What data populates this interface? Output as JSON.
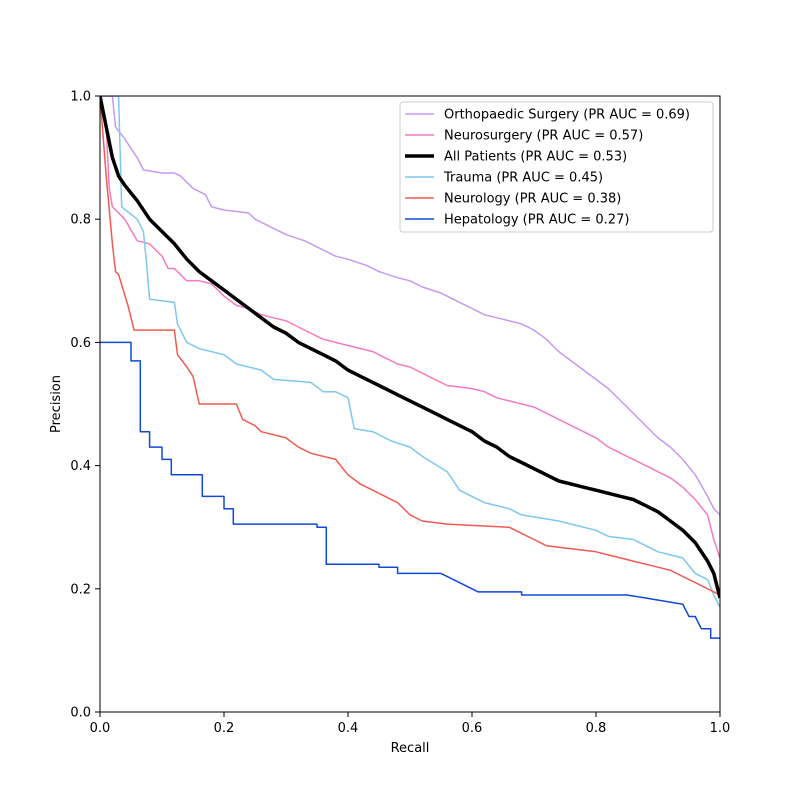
{
  "chart_data": {
    "type": "line",
    "title": "",
    "xlabel": "Recall",
    "ylabel": "Precision",
    "xlim": [
      0.0,
      1.0
    ],
    "ylim": [
      0.0,
      1.0
    ],
    "xticks": [
      "0.0",
      "0.2",
      "0.4",
      "0.6",
      "0.8",
      "1.0"
    ],
    "yticks": [
      "0.0",
      "0.2",
      "0.4",
      "0.6",
      "0.8",
      "1.0"
    ],
    "grid": false,
    "legend_position": "top-right",
    "series": [
      {
        "name": "Orthopaedic Surgery (PR AUC = 0.69)",
        "color": "#c39bf0",
        "linewidth": 1.5,
        "points": [
          [
            0.0,
            1.0
          ],
          [
            0.02,
            1.0
          ],
          [
            0.025,
            0.95
          ],
          [
            0.04,
            0.93
          ],
          [
            0.06,
            0.9
          ],
          [
            0.07,
            0.88
          ],
          [
            0.1,
            0.875
          ],
          [
            0.12,
            0.875
          ],
          [
            0.13,
            0.87
          ],
          [
            0.15,
            0.85
          ],
          [
            0.17,
            0.84
          ],
          [
            0.18,
            0.82
          ],
          [
            0.2,
            0.815
          ],
          [
            0.24,
            0.81
          ],
          [
            0.25,
            0.8
          ],
          [
            0.28,
            0.785
          ],
          [
            0.3,
            0.775
          ],
          [
            0.33,
            0.765
          ],
          [
            0.36,
            0.75
          ],
          [
            0.38,
            0.74
          ],
          [
            0.4,
            0.735
          ],
          [
            0.43,
            0.725
          ],
          [
            0.45,
            0.715
          ],
          [
            0.48,
            0.705
          ],
          [
            0.5,
            0.7
          ],
          [
            0.52,
            0.69
          ],
          [
            0.55,
            0.68
          ],
          [
            0.58,
            0.665
          ],
          [
            0.6,
            0.655
          ],
          [
            0.62,
            0.645
          ],
          [
            0.66,
            0.635
          ],
          [
            0.68,
            0.63
          ],
          [
            0.7,
            0.62
          ],
          [
            0.72,
            0.605
          ],
          [
            0.74,
            0.585
          ],
          [
            0.76,
            0.57
          ],
          [
            0.78,
            0.555
          ],
          [
            0.8,
            0.54
          ],
          [
            0.82,
            0.525
          ],
          [
            0.84,
            0.505
          ],
          [
            0.86,
            0.485
          ],
          [
            0.88,
            0.465
          ],
          [
            0.9,
            0.445
          ],
          [
            0.92,
            0.43
          ],
          [
            0.94,
            0.41
          ],
          [
            0.96,
            0.385
          ],
          [
            0.98,
            0.35
          ],
          [
            0.99,
            0.33
          ],
          [
            1.0,
            0.32
          ]
        ]
      },
      {
        "name": "Neurosurgery (PR AUC = 0.57)",
        "color": "#f57bbf",
        "linewidth": 1.5,
        "points": [
          [
            0.0,
            1.0
          ],
          [
            0.01,
            0.95
          ],
          [
            0.015,
            0.85
          ],
          [
            0.02,
            0.82
          ],
          [
            0.04,
            0.8
          ],
          [
            0.06,
            0.765
          ],
          [
            0.08,
            0.76
          ],
          [
            0.1,
            0.74
          ],
          [
            0.11,
            0.72
          ],
          [
            0.12,
            0.72
          ],
          [
            0.14,
            0.7
          ],
          [
            0.16,
            0.7
          ],
          [
            0.18,
            0.695
          ],
          [
            0.2,
            0.675
          ],
          [
            0.22,
            0.66
          ],
          [
            0.24,
            0.655
          ],
          [
            0.26,
            0.645
          ],
          [
            0.28,
            0.64
          ],
          [
            0.3,
            0.635
          ],
          [
            0.32,
            0.625
          ],
          [
            0.34,
            0.615
          ],
          [
            0.36,
            0.605
          ],
          [
            0.38,
            0.6
          ],
          [
            0.4,
            0.595
          ],
          [
            0.44,
            0.585
          ],
          [
            0.46,
            0.575
          ],
          [
            0.48,
            0.565
          ],
          [
            0.5,
            0.56
          ],
          [
            0.52,
            0.55
          ],
          [
            0.54,
            0.54
          ],
          [
            0.56,
            0.53
          ],
          [
            0.6,
            0.525
          ],
          [
            0.62,
            0.52
          ],
          [
            0.64,
            0.51
          ],
          [
            0.66,
            0.505
          ],
          [
            0.68,
            0.5
          ],
          [
            0.7,
            0.495
          ],
          [
            0.72,
            0.485
          ],
          [
            0.74,
            0.475
          ],
          [
            0.76,
            0.465
          ],
          [
            0.78,
            0.455
          ],
          [
            0.8,
            0.445
          ],
          [
            0.82,
            0.43
          ],
          [
            0.84,
            0.42
          ],
          [
            0.86,
            0.41
          ],
          [
            0.88,
            0.4
          ],
          [
            0.9,
            0.39
          ],
          [
            0.92,
            0.38
          ],
          [
            0.94,
            0.365
          ],
          [
            0.96,
            0.345
          ],
          [
            0.98,
            0.32
          ],
          [
            0.99,
            0.28
          ],
          [
            1.0,
            0.25
          ]
        ]
      },
      {
        "name": "All Patients (PR AUC = 0.53)",
        "color": "#000000",
        "linewidth": 3.5,
        "points": [
          [
            0.0,
            1.0
          ],
          [
            0.01,
            0.95
          ],
          [
            0.02,
            0.9
          ],
          [
            0.03,
            0.87
          ],
          [
            0.04,
            0.855
          ],
          [
            0.06,
            0.83
          ],
          [
            0.08,
            0.8
          ],
          [
            0.1,
            0.78
          ],
          [
            0.12,
            0.76
          ],
          [
            0.14,
            0.735
          ],
          [
            0.16,
            0.715
          ],
          [
            0.18,
            0.7
          ],
          [
            0.2,
            0.685
          ],
          [
            0.22,
            0.67
          ],
          [
            0.24,
            0.655
          ],
          [
            0.26,
            0.64
          ],
          [
            0.28,
            0.625
          ],
          [
            0.3,
            0.615
          ],
          [
            0.32,
            0.6
          ],
          [
            0.34,
            0.59
          ],
          [
            0.36,
            0.58
          ],
          [
            0.38,
            0.57
          ],
          [
            0.4,
            0.555
          ],
          [
            0.42,
            0.545
          ],
          [
            0.44,
            0.535
          ],
          [
            0.46,
            0.525
          ],
          [
            0.48,
            0.515
          ],
          [
            0.5,
            0.505
          ],
          [
            0.52,
            0.495
          ],
          [
            0.54,
            0.485
          ],
          [
            0.56,
            0.475
          ],
          [
            0.58,
            0.465
          ],
          [
            0.6,
            0.455
          ],
          [
            0.62,
            0.44
          ],
          [
            0.64,
            0.43
          ],
          [
            0.66,
            0.415
          ],
          [
            0.68,
            0.405
          ],
          [
            0.7,
            0.395
          ],
          [
            0.72,
            0.385
          ],
          [
            0.74,
            0.375
          ],
          [
            0.76,
            0.37
          ],
          [
            0.78,
            0.365
          ],
          [
            0.8,
            0.36
          ],
          [
            0.82,
            0.355
          ],
          [
            0.84,
            0.35
          ],
          [
            0.86,
            0.345
          ],
          [
            0.88,
            0.335
          ],
          [
            0.9,
            0.325
          ],
          [
            0.92,
            0.31
          ],
          [
            0.94,
            0.295
          ],
          [
            0.96,
            0.275
          ],
          [
            0.98,
            0.245
          ],
          [
            0.99,
            0.225
          ],
          [
            1.0,
            0.185
          ]
        ]
      },
      {
        "name": "Trauma (PR AUC = 0.45)",
        "color": "#7ec8ee",
        "linewidth": 1.5,
        "points": [
          [
            0.0,
            1.0
          ],
          [
            0.03,
            1.0
          ],
          [
            0.035,
            0.82
          ],
          [
            0.06,
            0.8
          ],
          [
            0.07,
            0.78
          ],
          [
            0.075,
            0.73
          ],
          [
            0.08,
            0.67
          ],
          [
            0.12,
            0.665
          ],
          [
            0.125,
            0.63
          ],
          [
            0.14,
            0.6
          ],
          [
            0.16,
            0.59
          ],
          [
            0.2,
            0.58
          ],
          [
            0.22,
            0.565
          ],
          [
            0.26,
            0.555
          ],
          [
            0.28,
            0.54
          ],
          [
            0.34,
            0.535
          ],
          [
            0.36,
            0.52
          ],
          [
            0.38,
            0.52
          ],
          [
            0.4,
            0.51
          ],
          [
            0.41,
            0.46
          ],
          [
            0.44,
            0.455
          ],
          [
            0.47,
            0.44
          ],
          [
            0.5,
            0.43
          ],
          [
            0.52,
            0.415
          ],
          [
            0.56,
            0.39
          ],
          [
            0.58,
            0.36
          ],
          [
            0.6,
            0.35
          ],
          [
            0.62,
            0.34
          ],
          [
            0.66,
            0.33
          ],
          [
            0.68,
            0.32
          ],
          [
            0.74,
            0.31
          ],
          [
            0.76,
            0.305
          ],
          [
            0.8,
            0.295
          ],
          [
            0.82,
            0.285
          ],
          [
            0.86,
            0.28
          ],
          [
            0.9,
            0.26
          ],
          [
            0.92,
            0.255
          ],
          [
            0.94,
            0.25
          ],
          [
            0.96,
            0.225
          ],
          [
            0.98,
            0.215
          ],
          [
            0.99,
            0.19
          ],
          [
            1.0,
            0.17
          ]
        ]
      },
      {
        "name": "Neurology (PR AUC = 0.38)",
        "color": "#f05a52",
        "linewidth": 1.5,
        "points": [
          [
            0.0,
            1.0
          ],
          [
            0.01,
            0.87
          ],
          [
            0.02,
            0.76
          ],
          [
            0.025,
            0.715
          ],
          [
            0.03,
            0.71
          ],
          [
            0.045,
            0.66
          ],
          [
            0.055,
            0.62
          ],
          [
            0.12,
            0.62
          ],
          [
            0.125,
            0.58
          ],
          [
            0.14,
            0.56
          ],
          [
            0.15,
            0.545
          ],
          [
            0.16,
            0.5
          ],
          [
            0.22,
            0.5
          ],
          [
            0.23,
            0.475
          ],
          [
            0.25,
            0.465
          ],
          [
            0.26,
            0.455
          ],
          [
            0.3,
            0.445
          ],
          [
            0.32,
            0.43
          ],
          [
            0.34,
            0.42
          ],
          [
            0.38,
            0.41
          ],
          [
            0.4,
            0.385
          ],
          [
            0.42,
            0.37
          ],
          [
            0.44,
            0.36
          ],
          [
            0.46,
            0.35
          ],
          [
            0.48,
            0.34
          ],
          [
            0.5,
            0.32
          ],
          [
            0.52,
            0.31
          ],
          [
            0.56,
            0.305
          ],
          [
            0.66,
            0.3
          ],
          [
            0.68,
            0.29
          ],
          [
            0.7,
            0.28
          ],
          [
            0.72,
            0.27
          ],
          [
            0.76,
            0.265
          ],
          [
            0.8,
            0.26
          ],
          [
            0.84,
            0.25
          ],
          [
            0.86,
            0.245
          ],
          [
            0.88,
            0.24
          ],
          [
            0.9,
            0.235
          ],
          [
            0.92,
            0.23
          ],
          [
            0.94,
            0.22
          ],
          [
            0.96,
            0.21
          ],
          [
            0.98,
            0.2
          ],
          [
            1.0,
            0.19
          ]
        ]
      },
      {
        "name": "Hepatology (PR AUC = 0.27)",
        "color": "#1048d8",
        "linewidth": 1.5,
        "points": [
          [
            0.0,
            0.6
          ],
          [
            0.05,
            0.6
          ],
          [
            0.05,
            0.57
          ],
          [
            0.065,
            0.57
          ],
          [
            0.065,
            0.455
          ],
          [
            0.08,
            0.455
          ],
          [
            0.08,
            0.43
          ],
          [
            0.1,
            0.43
          ],
          [
            0.1,
            0.41
          ],
          [
            0.115,
            0.41
          ],
          [
            0.115,
            0.385
          ],
          [
            0.165,
            0.385
          ],
          [
            0.165,
            0.35
          ],
          [
            0.2,
            0.35
          ],
          [
            0.2,
            0.33
          ],
          [
            0.215,
            0.33
          ],
          [
            0.215,
            0.305
          ],
          [
            0.35,
            0.305
          ],
          [
            0.35,
            0.3
          ],
          [
            0.365,
            0.3
          ],
          [
            0.365,
            0.24
          ],
          [
            0.45,
            0.24
          ],
          [
            0.45,
            0.235
          ],
          [
            0.48,
            0.235
          ],
          [
            0.48,
            0.225
          ],
          [
            0.55,
            0.225
          ],
          [
            0.6,
            0.2
          ],
          [
            0.61,
            0.195
          ],
          [
            0.68,
            0.195
          ],
          [
            0.68,
            0.19
          ],
          [
            0.85,
            0.19
          ],
          [
            0.88,
            0.185
          ],
          [
            0.91,
            0.18
          ],
          [
            0.94,
            0.175
          ],
          [
            0.95,
            0.155
          ],
          [
            0.96,
            0.155
          ],
          [
            0.97,
            0.135
          ],
          [
            0.985,
            0.135
          ],
          [
            0.985,
            0.12
          ],
          [
            1.0,
            0.12
          ]
        ]
      }
    ]
  }
}
